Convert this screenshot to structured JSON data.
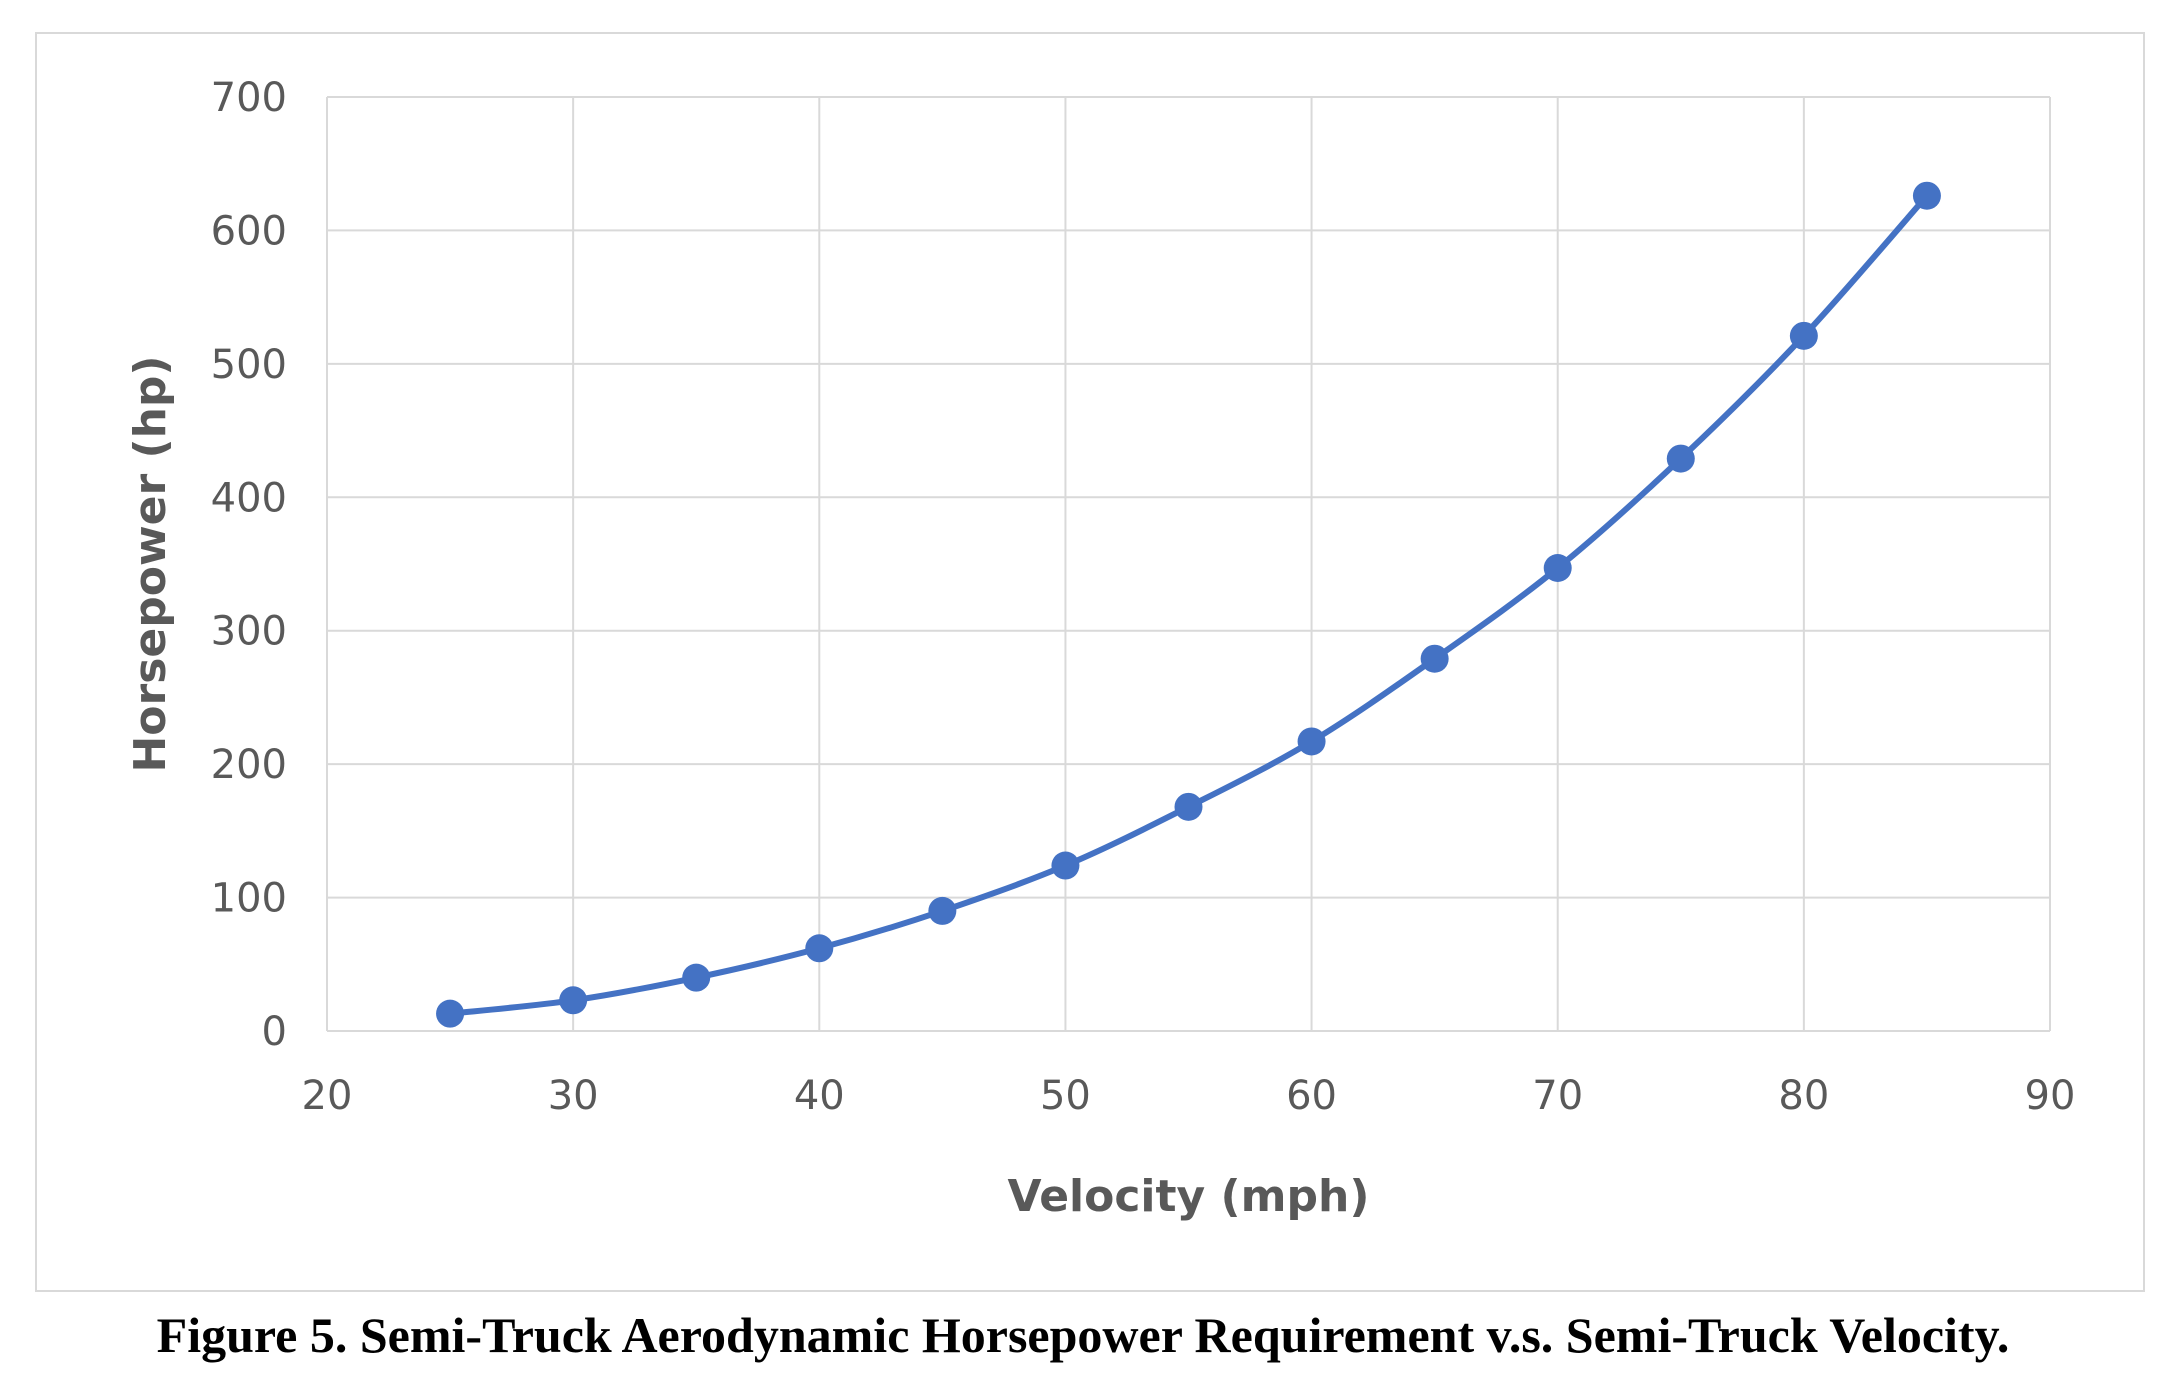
{
  "chart_data": {
    "type": "line",
    "title": "",
    "xlabel": "Velocity (mph)",
    "ylabel": "Horsepower (hp)",
    "xlim": [
      20,
      90
    ],
    "ylim": [
      0,
      700
    ],
    "x_ticks": [
      "20",
      "30",
      "40",
      "50",
      "60",
      "70",
      "80",
      "90"
    ],
    "y_ticks": [
      "0",
      "100",
      "200",
      "300",
      "400",
      "500",
      "600",
      "700"
    ],
    "grid": true,
    "legend": "none",
    "markers": true,
    "series": [
      {
        "color": "#4472c4",
        "x": [
          25,
          30,
          35,
          40,
          45,
          50,
          55,
          60,
          65,
          70,
          75,
          80,
          85
        ],
        "y": [
          13,
          23,
          40,
          62,
          90,
          124,
          168,
          217,
          279,
          347,
          429,
          521,
          626
        ]
      }
    ]
  },
  "caption": "Figure 5. Semi-Truck Aerodynamic Horsepower Requirement v.s. Semi-Truck Velocity."
}
